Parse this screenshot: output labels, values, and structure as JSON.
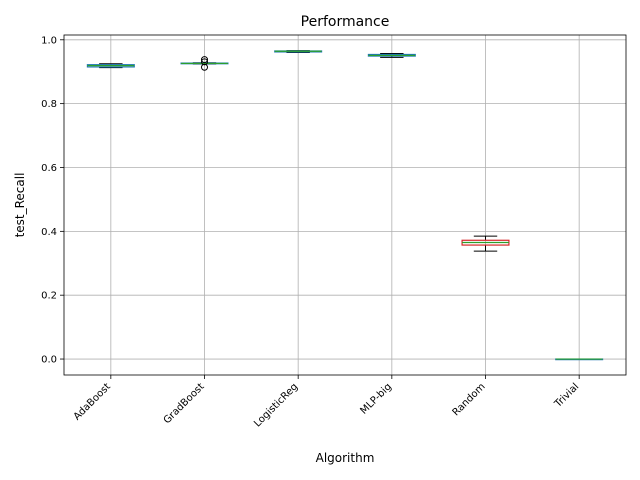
{
  "chart_data": {
    "type": "box",
    "title": "Performance",
    "xlabel": "Algorithm",
    "ylabel": "test_Recall",
    "ylim": [
      -0.05,
      1.015
    ],
    "yticks": [
      0.0,
      0.2,
      0.4,
      0.6,
      0.8,
      1.0
    ],
    "ytick_labels": [
      "0.0",
      "0.2",
      "0.4",
      "0.6",
      "0.8",
      "1.0"
    ],
    "grid": true,
    "categories": [
      "AdaBoost",
      "GradBoost",
      "LogisticReg",
      "MLP-big",
      "Random",
      "Trivial"
    ],
    "boxes": [
      {
        "name": "AdaBoost",
        "whisker_low": 0.913,
        "q1": 0.915,
        "median": 0.919,
        "q3": 0.922,
        "whisker_high": 0.925,
        "outliers": []
      },
      {
        "name": "GradBoost",
        "whisker_low": 0.924,
        "q1": 0.925,
        "median": 0.926,
        "q3": 0.927,
        "whisker_high": 0.928,
        "outliers": [
          0.914,
          0.931,
          0.938
        ]
      },
      {
        "name": "LogisticReg",
        "whisker_low": 0.96,
        "q1": 0.962,
        "median": 0.964,
        "q3": 0.965,
        "whisker_high": 0.966,
        "outliers": []
      },
      {
        "name": "MLP-big",
        "whisker_low": 0.945,
        "q1": 0.949,
        "median": 0.951,
        "q3": 0.954,
        "whisker_high": 0.957,
        "outliers": []
      },
      {
        "name": "Random",
        "whisker_low": 0.338,
        "q1": 0.357,
        "median": 0.365,
        "q3": 0.372,
        "whisker_high": 0.385,
        "outliers": []
      },
      {
        "name": "Trivial",
        "whisker_low": 0.0,
        "q1": 0.0,
        "median": 0.0,
        "q3": 0.0,
        "whisker_high": 0.0,
        "outliers": []
      }
    ],
    "colors": {
      "box_edge": "#1f77b4",
      "median": "#2ca02c",
      "whisker": "#000000",
      "grid": "#b0b0b0",
      "random_box": "#d62728"
    }
  }
}
